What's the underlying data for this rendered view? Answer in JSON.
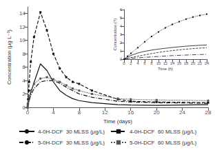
{
  "chart_data": [
    {
      "type": "line",
      "xlabel": "Time (days)",
      "ylabel": "Concentration (μg L⁻¹)",
      "xlim": [
        0,
        28
      ],
      "ylim": [
        0,
        15
      ],
      "xticks": [
        0,
        4,
        8,
        12,
        16,
        20,
        24,
        28
      ],
      "yticks": [
        0,
        2,
        4,
        6,
        8,
        10,
        12,
        14
      ],
      "grid": false,
      "legend": "bottom",
      "x": [
        0,
        0.04,
        0.08,
        0.17,
        0.25,
        0.5,
        1,
        2,
        3,
        4,
        5,
        6,
        7,
        8,
        10,
        14,
        16,
        20,
        28
      ],
      "series": [
        {
          "name": "4-0H-DCF  30 MLSS (μg/L)",
          "color": "#111111",
          "line_style": "solid",
          "marker": "none",
          "values": [
            0,
            0.3,
            0.6,
            1.0,
            1.3,
            2.2,
            3.7,
            6.5,
            5.5,
            3.8,
            2.5,
            1.8,
            1.3,
            1.0,
            0.7,
            0.4,
            0.35,
            0.3,
            0.4
          ]
        },
        {
          "name": "4-0H-DCF  60 MLSS (μg/L)",
          "color": "#111111",
          "line_style": "dashed",
          "marker": "square",
          "values": [
            0,
            0.5,
            1.2,
            2.5,
            3.8,
            6.8,
            10.5,
            14.2,
            11.5,
            8.0,
            5.8,
            4.5,
            3.8,
            3.5,
            2.5,
            1.2,
            0.9,
            0.8,
            0.7
          ]
        },
        {
          "name": "5-0H-DCF  30 MLSS (μg/L)",
          "color": "#111111",
          "line_style": "dashdot",
          "marker": "none",
          "values": [
            0,
            0.2,
            0.4,
            0.7,
            1.0,
            1.8,
            2.8,
            3.8,
            4.0,
            4.0,
            3.6,
            3.0,
            2.5,
            2.0,
            1.5,
            0.9,
            0.8,
            0.7,
            0.6
          ]
        },
        {
          "name": "5-0H-DCF  60 MLSS (μg/L)",
          "color": "#555555",
          "line_style": "dotted",
          "marker": "square",
          "values": [
            0,
            0.3,
            0.6,
            1.0,
            1.5,
            2.5,
            3.5,
            4.3,
            4.5,
            4.2,
            3.8,
            3.3,
            2.8,
            2.5,
            2.0,
            1.3,
            1.2,
            1.1,
            1.0
          ]
        }
      ]
    },
    {
      "type": "line",
      "xlabel": "Time (h)",
      "ylabel": "Concentration (?)",
      "xlim": [
        0,
        24
      ],
      "ylim": [
        0,
        6
      ],
      "xticks": [
        0,
        2,
        4,
        6,
        8,
        10,
        12,
        14,
        16,
        18,
        20,
        22,
        24
      ],
      "yticks": [
        0,
        1,
        2,
        3,
        4,
        5,
        6
      ],
      "grid": false,
      "x": [
        0,
        1,
        2,
        4,
        6,
        8,
        10,
        12,
        14,
        16,
        18,
        20,
        22,
        24
      ],
      "series": [
        {
          "color": "#111111",
          "line_style": "solid",
          "marker": "none",
          "values": [
            0,
            0.25,
            0.45,
            0.75,
            0.95,
            1.1,
            1.22,
            1.32,
            1.42,
            1.5,
            1.57,
            1.63,
            1.68,
            1.72
          ]
        },
        {
          "color": "#111111",
          "line_style": "dotted",
          "marker": "square",
          "values": [
            0,
            0.35,
            0.7,
            1.4,
            2.1,
            2.75,
            3.3,
            3.8,
            4.2,
            4.55,
            4.85,
            5.1,
            5.3,
            5.45
          ]
        },
        {
          "color": "#111111",
          "line_style": "dashdot",
          "marker": "none",
          "values": [
            0,
            0.05,
            0.1,
            0.16,
            0.22,
            0.28,
            0.33,
            0.38,
            0.43,
            0.47,
            0.5,
            0.53,
            0.56,
            0.58
          ]
        },
        {
          "color": "#111111",
          "line_style": "dashed",
          "marker": "none",
          "values": [
            0,
            0.1,
            0.2,
            0.36,
            0.52,
            0.68,
            0.82,
            0.94,
            1.04,
            1.13,
            1.21,
            1.28,
            1.34,
            1.38
          ]
        }
      ]
    }
  ]
}
